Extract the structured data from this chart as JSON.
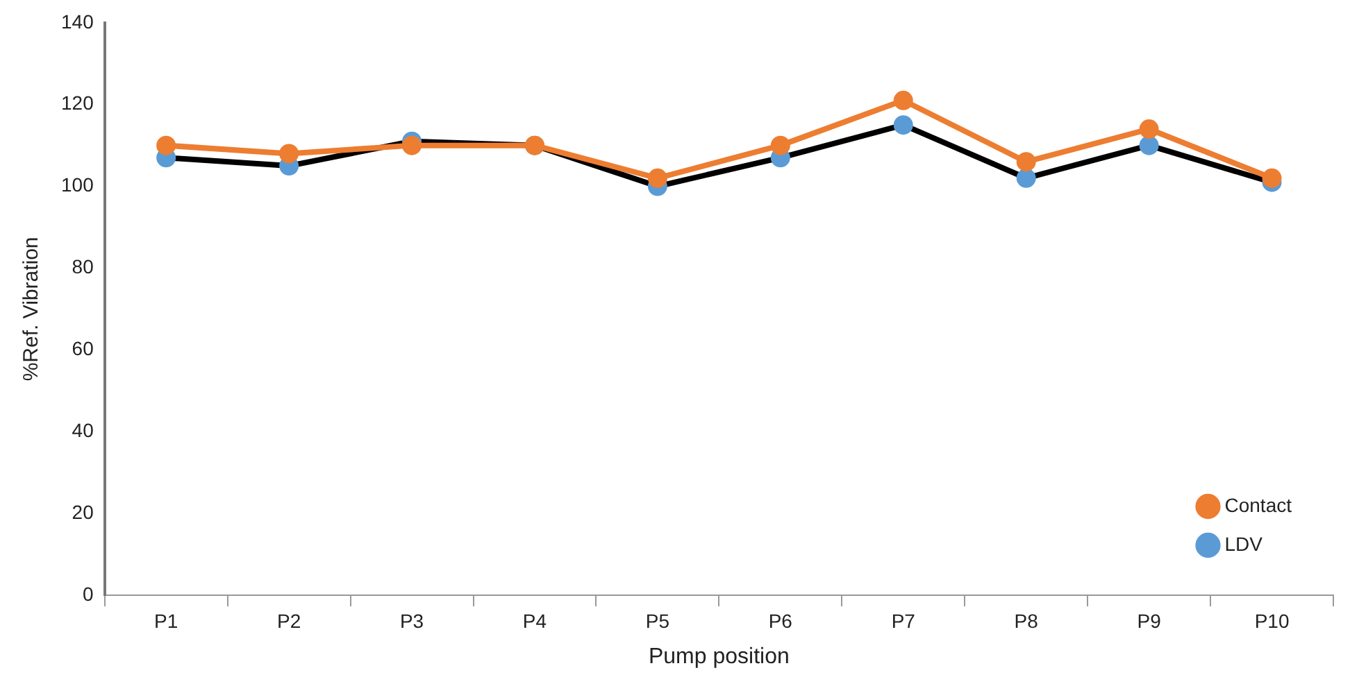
{
  "chart_data": {
    "type": "line",
    "xlabel": "Pump position",
    "ylabel": "%Ref. Vibration",
    "categories": [
      "P1",
      "P2",
      "P3",
      "P4",
      "P5",
      "P6",
      "P7",
      "P8",
      "P9",
      "P10"
    ],
    "series": [
      {
        "name": "LDV",
        "color": "#000000",
        "colors": [
          "#5b9bd5",
          "#5b9bd5",
          "#5b9bd5",
          "#5b9bd5",
          "#5b9bd5",
          "#5b9bd5",
          "#5b9bd5",
          "#5b9bd5",
          "#5b9bd5",
          "#5b9bd5"
        ],
        "values": [
          107,
          105,
          111,
          110,
          100,
          107,
          115,
          102,
          110,
          101
        ]
      },
      {
        "name": "Contact",
        "color": "#ed7d31",
        "values": [
          110,
          108,
          110,
          110,
          102,
          110,
          121,
          106,
          114,
          102
        ]
      }
    ],
    "ylim": [
      0,
      140
    ],
    "yticks": [
      0,
      20,
      40,
      60,
      80,
      100,
      120,
      140
    ],
    "grid": false,
    "legend": "bottom right",
    "marker": "circle",
    "line_style": "solid"
  }
}
